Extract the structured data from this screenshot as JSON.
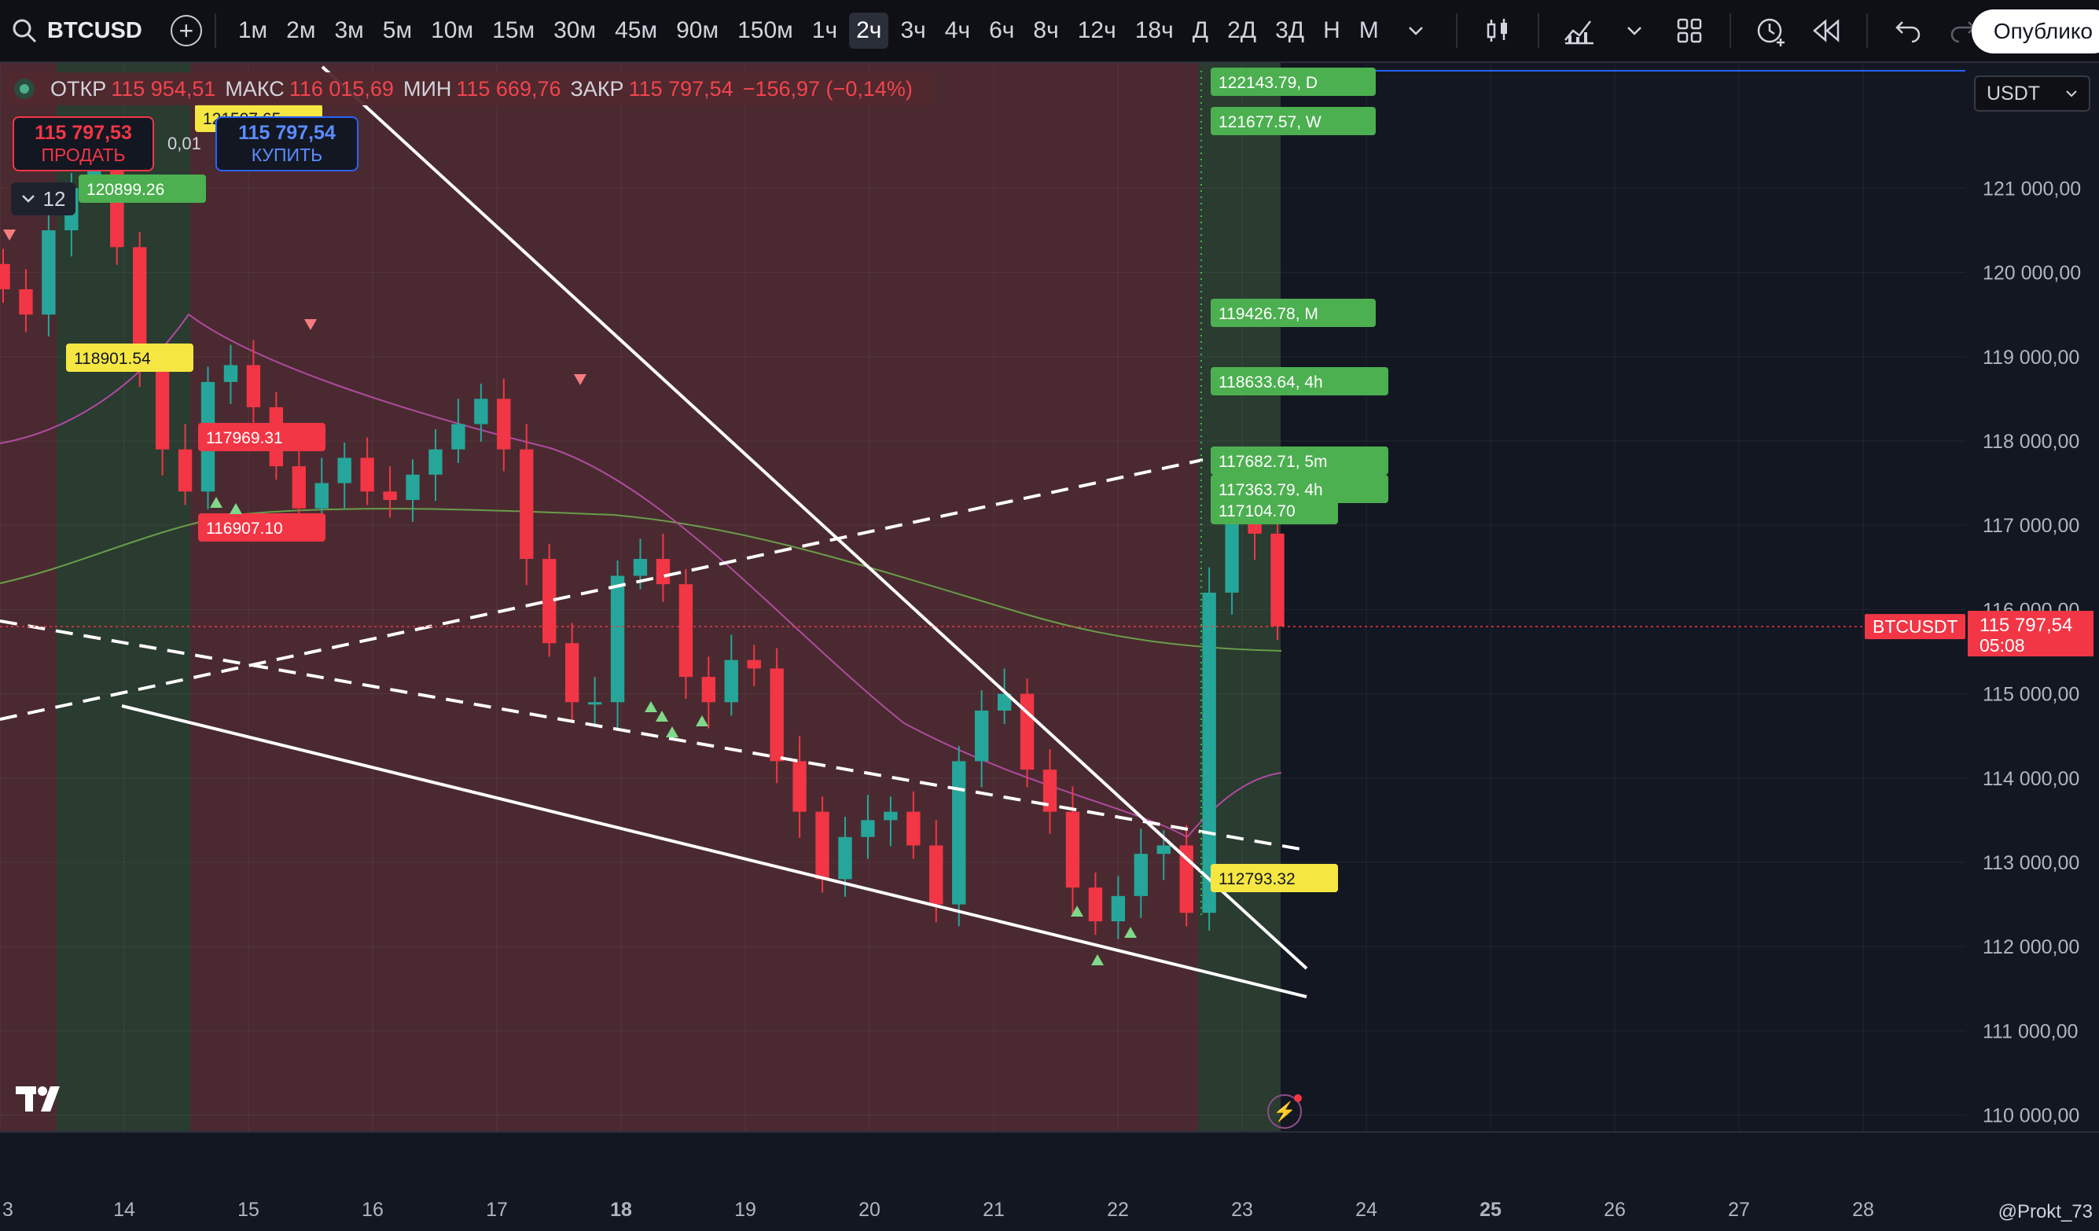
{
  "toolbar": {
    "symbol": "BTCUSD",
    "intervals": [
      "1м",
      "2м",
      "3м",
      "5м",
      "10м",
      "15м",
      "30м",
      "45м",
      "90м",
      "150м",
      "1ч",
      "2ч",
      "3ч",
      "4ч",
      "6ч",
      "8ч",
      "12ч",
      "18ч",
      "Д",
      "2Д",
      "3Д",
      "Н",
      "М"
    ],
    "active_interval": "2ч",
    "publish_label": "Опублико"
  },
  "legend": {
    "open_label": "ОТКР",
    "open": "115 954,51",
    "high_label": "МАКС",
    "high": "116 015,69",
    "low_label": "МИН",
    "low": "115 669,76",
    "close_label": "ЗАКР",
    "close": "115 797,54",
    "change": "−156,97 (−0,14%)"
  },
  "trade": {
    "sell_price": "115 797,53",
    "sell_label": "ПРОДАТЬ",
    "buy_price": "115 797,54",
    "buy_label": "КУПИТЬ",
    "spread": "0,01"
  },
  "indicators_count": "12",
  "currency": "USDT",
  "price_scale": {
    "ticks": [
      "121 000,00",
      "120 000,00",
      "119 000,00",
      "118 000,00",
      "117 000,00",
      "116 000,00",
      "115 000,00",
      "114 000,00",
      "113 000,00",
      "112 000,00",
      "111 000,00",
      "110 000,00"
    ],
    "symbol_tag": "BTCUSDT",
    "last_price": "115 797,54",
    "countdown": "05:08"
  },
  "time_scale": {
    "ticks": [
      "3",
      "14",
      "15",
      "16",
      "17",
      "18",
      "19",
      "20",
      "21",
      "22",
      "23",
      "24",
      "25",
      "26",
      "27",
      "28"
    ]
  },
  "level_labels": [
    {
      "text": "122143.79, D",
      "color": "#4caf50"
    },
    {
      "text": "121677.57, W",
      "color": "#4caf50"
    },
    {
      "text": "119426.78, M",
      "color": "#4caf50"
    },
    {
      "text": "118633.64, 4h",
      "color": "#4caf50"
    },
    {
      "text": "117682.71, 5m",
      "color": "#4caf50"
    },
    {
      "text": "117363.79, 4h",
      "color": "#4caf50"
    },
    {
      "text": "117104.70",
      "color": "#4caf50"
    },
    {
      "text": "112793.32",
      "color": "#f5e642"
    },
    {
      "text": "120899.26",
      "color": "#4caf50"
    },
    {
      "text": "121597.65",
      "color": "#f5e642"
    },
    {
      "text": "118901.54",
      "color": "#f5e642"
    },
    {
      "text": "117969.31",
      "color": "#f23645"
    },
    {
      "text": "116907.10",
      "color": "#f23645"
    }
  ],
  "watermark": "@Prokt_73",
  "chart_data": {
    "type": "candlestick",
    "symbol": "BTCUSDT",
    "y_range": [
      109800,
      122300
    ],
    "x_ticks": [
      "3",
      "14",
      "15",
      "16",
      "17",
      "18",
      "19",
      "20",
      "21",
      "22",
      "23",
      "24",
      "25",
      "26",
      "27",
      "28"
    ],
    "last_price": 115797.54,
    "ohlc_last": {
      "open": 115954.51,
      "high": 116015.69,
      "low": 115669.76,
      "close": 115797.54
    },
    "close_path": [
      119800,
      119500,
      120500,
      121000,
      121300,
      120300,
      118900,
      117900,
      117400,
      118700,
      118900,
      118400,
      117700,
      117200,
      117500,
      117800,
      117400,
      117300,
      117600,
      117900,
      118200,
      118500,
      117900,
      116600,
      115600,
      114900,
      114900,
      116400,
      116600,
      116300,
      115200,
      114900,
      115400,
      115300,
      114200,
      113600,
      112800,
      113300,
      113500,
      113600,
      113200,
      112500,
      114200,
      114800,
      115000,
      114100,
      113600,
      112700,
      112300,
      112600,
      113100,
      113200,
      112400,
      116200,
      117100,
      116900,
      115800
    ]
  },
  "colors": {
    "up": "#26a69a",
    "down": "#f23645",
    "bearish_zone": "#4a2a30",
    "bullish_zone": "#2a3b30",
    "ma_long": "#6a9c4a",
    "ma_short": "#b04aa0"
  }
}
